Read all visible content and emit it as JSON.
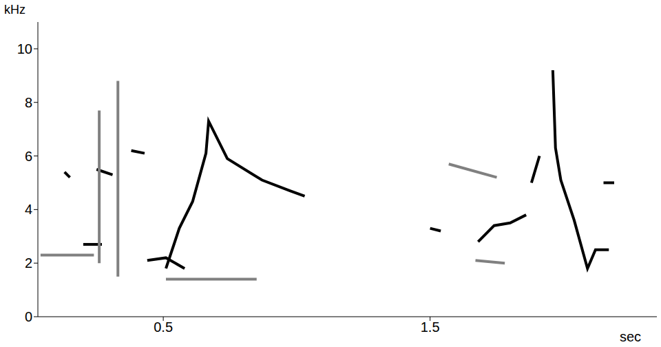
{
  "chart_data": {
    "type": "line",
    "x_label": "sec",
    "y_label": "kHz",
    "xlim": [
      0.03,
      2.35
    ],
    "xticks": [
      0.5,
      1.5
    ],
    "ylim": [
      0,
      11
    ],
    "yticks": [
      0,
      2,
      4,
      6,
      8,
      10
    ],
    "grid": false,
    "series": [
      {
        "color": "#000000",
        "x": [
          0.51,
          0.56,
          0.61,
          0.66,
          0.67,
          0.74,
          0.87,
          0.975,
          1.03
        ],
        "values": [
          1.8,
          3.3,
          4.3,
          6.1,
          7.3,
          5.9,
          5.1,
          4.7,
          4.5
        ]
      },
      {
        "color": "#808080",
        "x": [
          0.51,
          0.85
        ],
        "values": [
          1.4,
          1.4
        ]
      },
      {
        "color": "#000000",
        "x": [
          0.13,
          0.15
        ],
        "values": [
          5.4,
          5.2
        ]
      },
      {
        "color": "#000000",
        "x": [
          0.25,
          0.31
        ],
        "values": [
          5.5,
          5.3
        ]
      },
      {
        "color": "#000000",
        "x": [
          0.38,
          0.43
        ],
        "values": [
          6.2,
          6.1
        ]
      },
      {
        "color": "#808080",
        "x": [
          0.04,
          0.24
        ],
        "values": [
          2.3,
          2.3
        ]
      },
      {
        "color": "#000000",
        "x": [
          0.2,
          0.27
        ],
        "values": [
          2.7,
          2.7
        ]
      },
      {
        "color": "#000000",
        "x": [
          0.44,
          0.51,
          0.58
        ],
        "values": [
          2.1,
          2.2,
          1.8
        ]
      },
      {
        "color": "#808080",
        "x": [
          0.33,
          0.33
        ],
        "values": [
          8.8,
          1.5
        ]
      },
      {
        "color": "#808080",
        "x": [
          0.26,
          0.26
        ],
        "values": [
          7.7,
          2.0
        ]
      },
      {
        "color": "#000000",
        "x": [
          1.5,
          1.54
        ],
        "values": [
          3.3,
          3.2
        ]
      },
      {
        "color": "#808080",
        "x": [
          1.57,
          1.75
        ],
        "values": [
          5.7,
          5.2
        ]
      },
      {
        "color": "#000000",
        "x": [
          1.68,
          1.74,
          1.8,
          1.86
        ],
        "values": [
          2.8,
          3.4,
          3.5,
          3.8
        ]
      },
      {
        "color": "#808080",
        "x": [
          1.67,
          1.78
        ],
        "values": [
          2.1,
          2.0
        ]
      },
      {
        "color": "#000000",
        "x": [
          1.88,
          1.91
        ],
        "values": [
          5.0,
          6.0
        ]
      },
      {
        "color": "#000000",
        "x": [
          1.96,
          1.97,
          1.99,
          2.04,
          2.09,
          2.12,
          2.17
        ],
        "values": [
          9.2,
          6.3,
          5.1,
          3.6,
          1.8,
          2.5,
          2.5
        ]
      },
      {
        "color": "#000000",
        "x": [
          2.15,
          2.19
        ],
        "values": [
          5.0,
          5.0
        ]
      }
    ]
  }
}
